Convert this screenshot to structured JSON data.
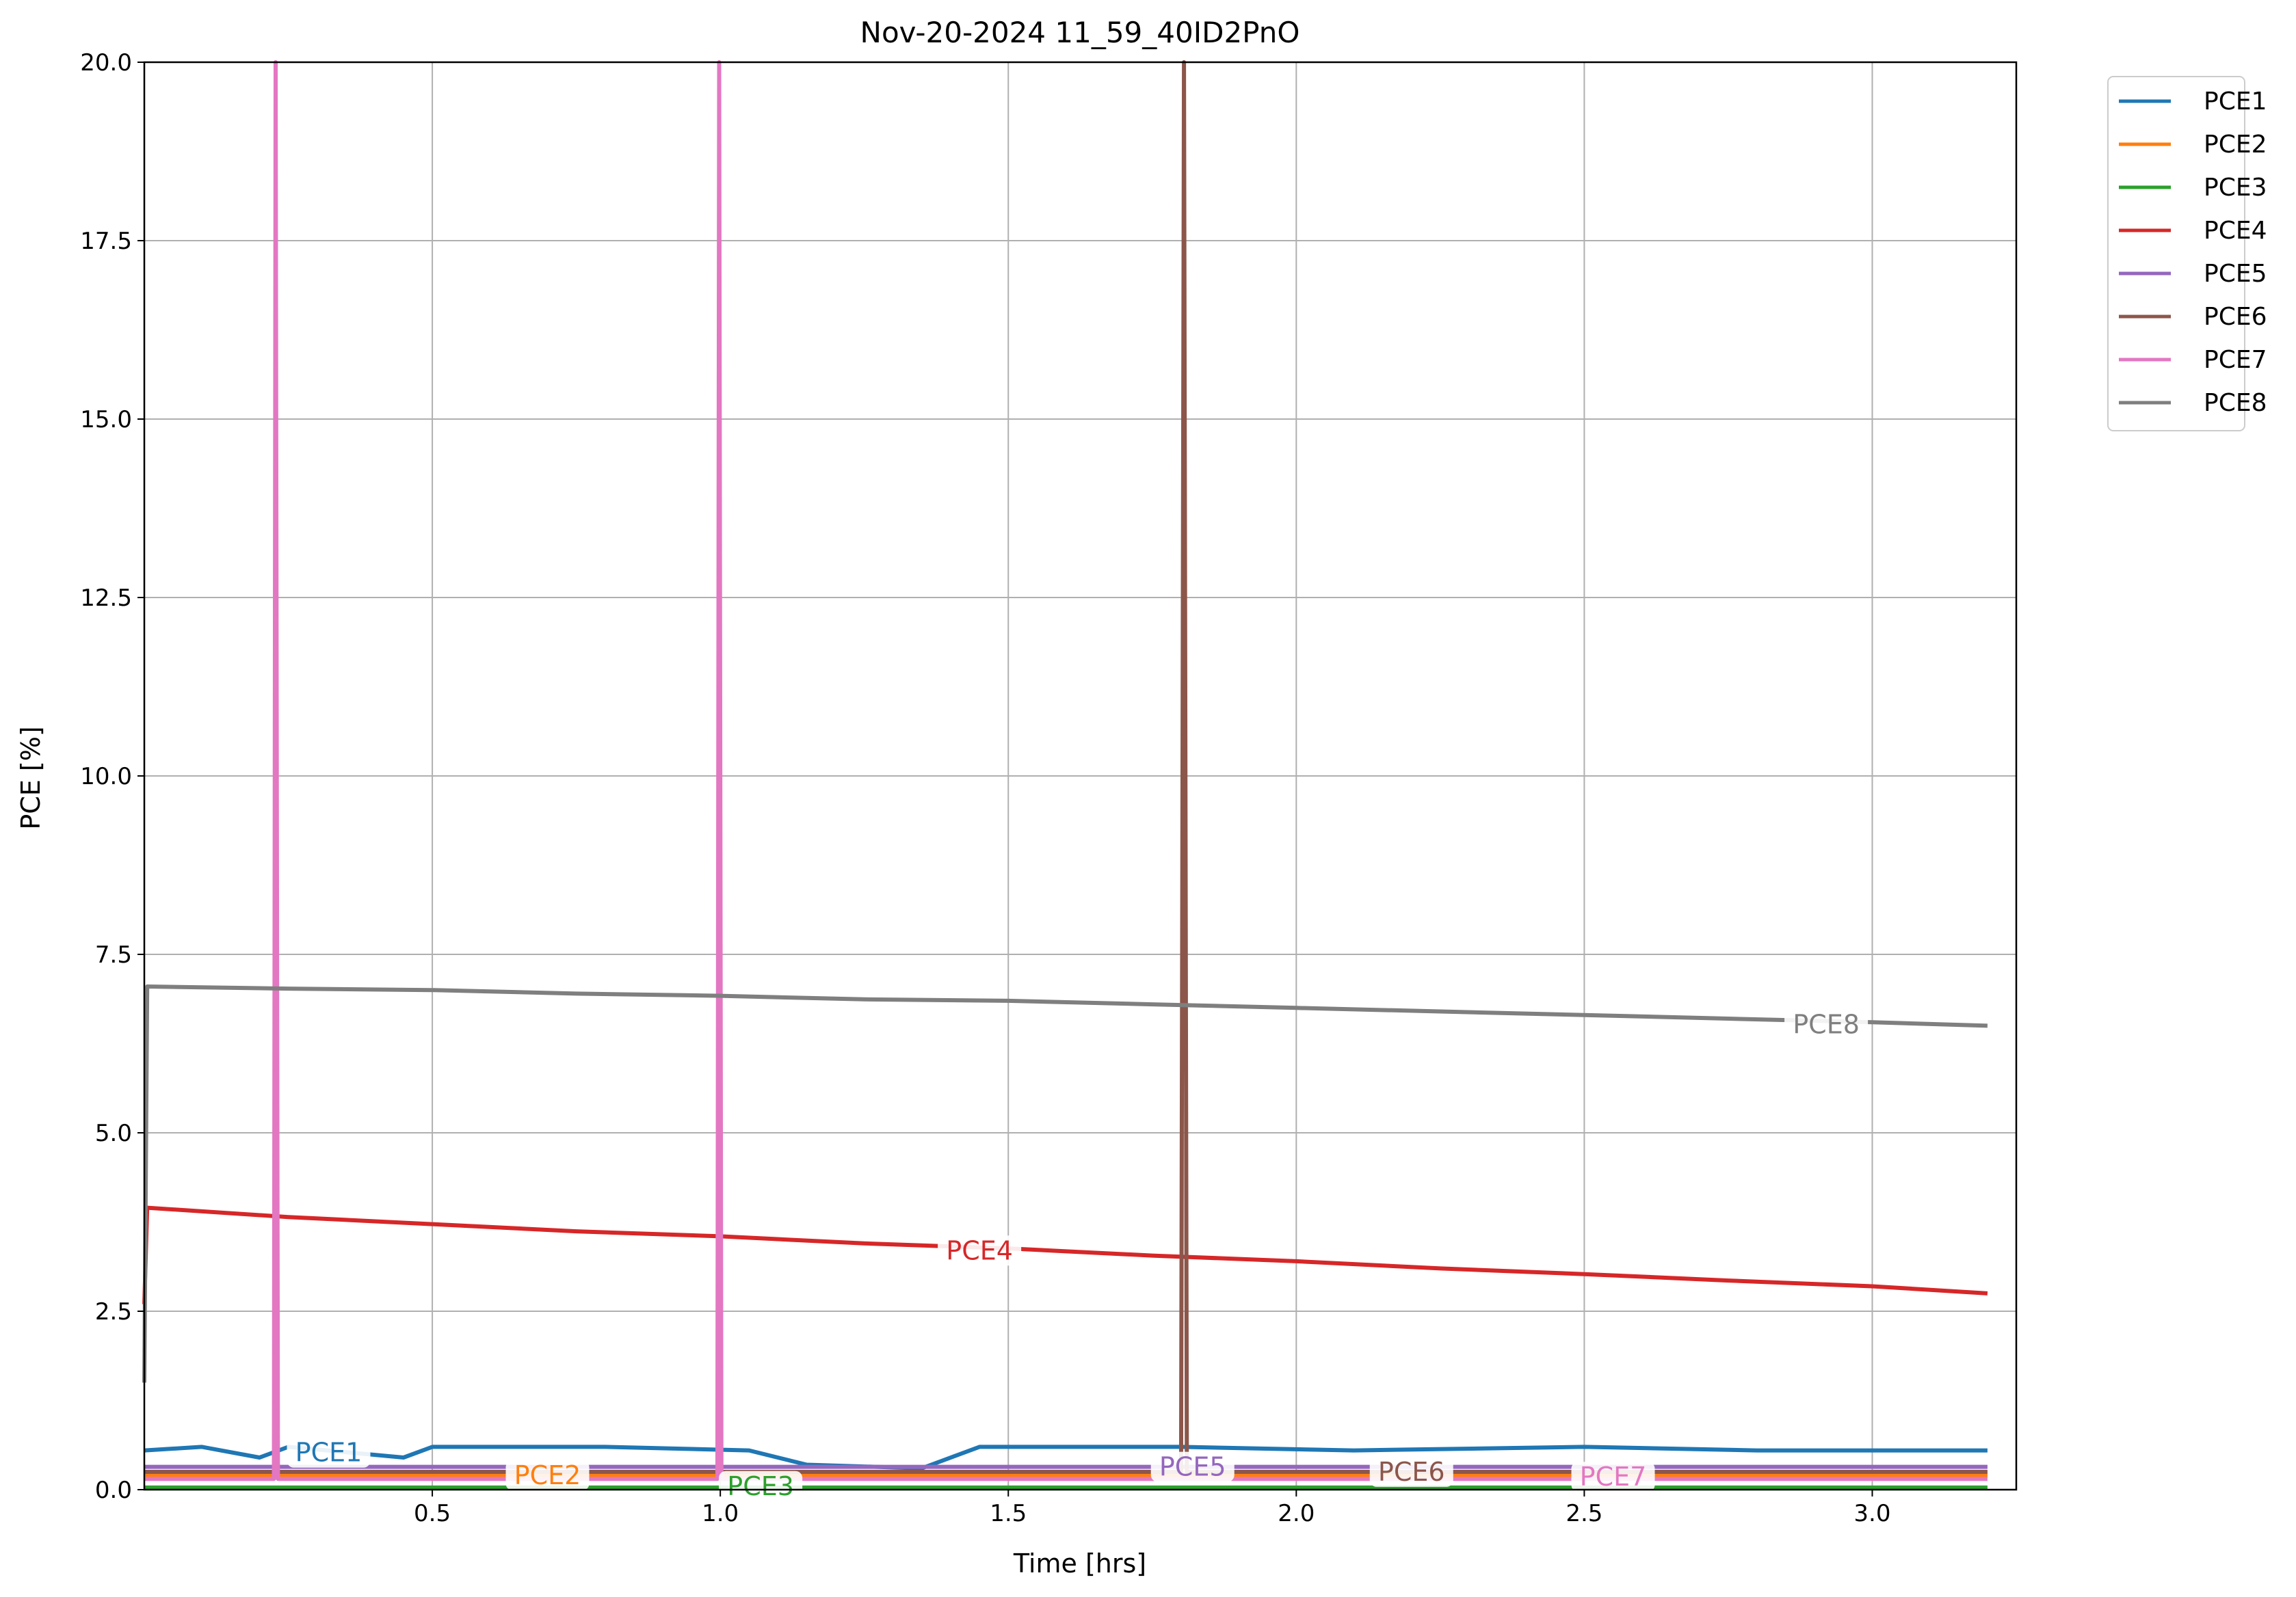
{
  "chart_data": {
    "type": "line",
    "title": "Nov-20-2024 11_59_40ID2PnO",
    "xlabel": "Time [hrs]",
    "ylabel": "PCE [%]",
    "xlim": [
      0.0,
      3.25
    ],
    "ylim": [
      0.0,
      20.0
    ],
    "x_ticks": [
      {
        "value": 0.5,
        "label": "0.5"
      },
      {
        "value": 1.0,
        "label": "1.0"
      },
      {
        "value": 1.5,
        "label": "1.5"
      },
      {
        "value": 2.0,
        "label": "2.0"
      },
      {
        "value": 2.5,
        "label": "2.5"
      },
      {
        "value": 3.0,
        "label": "3.0"
      }
    ],
    "y_ticks": [
      {
        "value": 0.0,
        "label": "0.0"
      },
      {
        "value": 2.5,
        "label": "2.5"
      },
      {
        "value": 5.0,
        "label": "5.0"
      },
      {
        "value": 7.5,
        "label": "7.5"
      },
      {
        "value": 10.0,
        "label": "10.0"
      },
      {
        "value": 12.5,
        "label": "12.5"
      },
      {
        "value": 15.0,
        "label": "15.0"
      },
      {
        "value": 17.5,
        "label": "17.5"
      },
      {
        "value": 20.0,
        "label": "20.0"
      }
    ],
    "grid": true,
    "legend_position": "outside-top-right",
    "series": [
      {
        "name": "PCE1",
        "color": "#1f77b4",
        "label_at": [
          0.32,
          0.52
        ],
        "points": [
          [
            0.0,
            0.55
          ],
          [
            0.1,
            0.6
          ],
          [
            0.2,
            0.45
          ],
          [
            0.25,
            0.6
          ],
          [
            0.45,
            0.45
          ],
          [
            0.5,
            0.6
          ],
          [
            0.8,
            0.6
          ],
          [
            1.05,
            0.55
          ],
          [
            1.15,
            0.35
          ],
          [
            1.35,
            0.3
          ],
          [
            1.45,
            0.6
          ],
          [
            1.8,
            0.6
          ],
          [
            2.1,
            0.55
          ],
          [
            2.5,
            0.6
          ],
          [
            2.8,
            0.55
          ],
          [
            3.2,
            0.55
          ]
        ]
      },
      {
        "name": "PCE2",
        "color": "#ff7f0e",
        "label_at": [
          0.7,
          0.2
        ],
        "points": [
          [
            0.0,
            0.2
          ],
          [
            1.0,
            0.2
          ],
          [
            2.0,
            0.2
          ],
          [
            3.2,
            0.2
          ]
        ]
      },
      {
        "name": "PCE3",
        "color": "#2ca02c",
        "label_at": [
          1.07,
          0.05
        ],
        "points": [
          [
            0.0,
            0.03
          ],
          [
            1.0,
            0.03
          ],
          [
            2.0,
            0.03
          ],
          [
            3.2,
            0.03
          ]
        ]
      },
      {
        "name": "PCE4",
        "color": "#d62728",
        "label_at": [
          1.45,
          3.35
        ],
        "points": [
          [
            0.0,
            2.6
          ],
          [
            0.005,
            3.95
          ],
          [
            0.25,
            3.82
          ],
          [
            0.5,
            3.72
          ],
          [
            0.75,
            3.62
          ],
          [
            1.0,
            3.55
          ],
          [
            1.25,
            3.45
          ],
          [
            1.5,
            3.38
          ],
          [
            1.75,
            3.28
          ],
          [
            2.0,
            3.2
          ],
          [
            2.25,
            3.1
          ],
          [
            2.5,
            3.02
          ],
          [
            2.75,
            2.93
          ],
          [
            3.0,
            2.85
          ],
          [
            3.2,
            2.75
          ]
        ]
      },
      {
        "name": "PCE5",
        "color": "#9467bd",
        "label_at": [
          1.82,
          0.32
        ],
        "points": [
          [
            0.0,
            0.32
          ],
          [
            1.0,
            0.32
          ],
          [
            2.0,
            0.32
          ],
          [
            3.2,
            0.32
          ]
        ]
      },
      {
        "name": "PCE6",
        "color": "#8c564b",
        "label_at": [
          2.2,
          0.25
        ],
        "points": [
          [
            0.0,
            0.25
          ],
          [
            1.0,
            0.25
          ],
          [
            1.8,
            0.25
          ],
          [
            1.805,
            20.0
          ],
          [
            1.81,
            0.25
          ],
          [
            2.5,
            0.25
          ],
          [
            3.2,
            0.25
          ]
        ]
      },
      {
        "name": "PCE7",
        "color": "#e377c2",
        "label_at": [
          2.55,
          0.18
        ],
        "points": [
          [
            0.0,
            0.15
          ],
          [
            0.225,
            0.15
          ],
          [
            0.228,
            20.0
          ],
          [
            0.232,
            0.15
          ],
          [
            0.995,
            0.15
          ],
          [
            0.998,
            20.0
          ],
          [
            1.002,
            0.15
          ],
          [
            2.0,
            0.15
          ],
          [
            3.2,
            0.15
          ]
        ]
      },
      {
        "name": "PCE8",
        "color": "#7f7f7f",
        "label_at": [
          2.92,
          6.52
        ],
        "points": [
          [
            0.0,
            1.5
          ],
          [
            0.005,
            7.05
          ],
          [
            0.25,
            7.02
          ],
          [
            0.5,
            7.0
          ],
          [
            0.75,
            6.95
          ],
          [
            1.0,
            6.92
          ],
          [
            1.25,
            6.87
          ],
          [
            1.5,
            6.85
          ],
          [
            1.75,
            6.8
          ],
          [
            2.0,
            6.75
          ],
          [
            2.25,
            6.7
          ],
          [
            2.5,
            6.65
          ],
          [
            2.75,
            6.6
          ],
          [
            3.0,
            6.55
          ],
          [
            3.2,
            6.5
          ]
        ]
      }
    ]
  }
}
